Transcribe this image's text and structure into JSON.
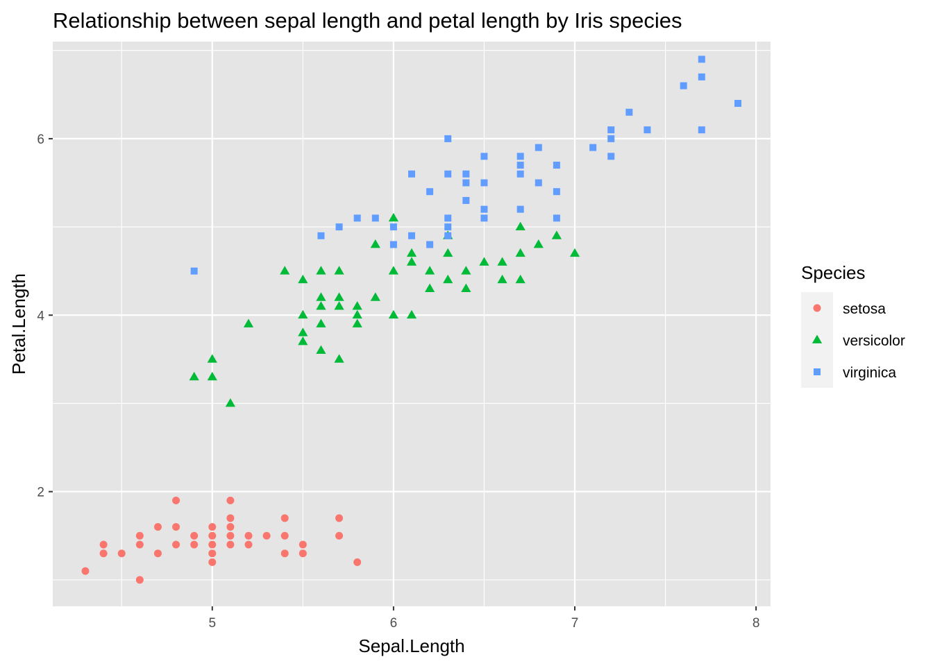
{
  "chart_data": {
    "type": "scatter",
    "title": "Relationship between sepal length and petal length by Iris species",
    "xlabel": "Sepal.Length",
    "ylabel": "Petal.Length",
    "xlim": [
      4.12,
      8.08
    ],
    "ylim": [
      0.7,
      7.1
    ],
    "x_ticks": [
      5,
      6,
      7,
      8
    ],
    "y_ticks": [
      2,
      4,
      6
    ],
    "x_tick_labels": [
      "5",
      "6",
      "7",
      "8"
    ],
    "y_tick_labels": [
      "2",
      "4",
      "6"
    ],
    "grid": true,
    "legend": {
      "title": "Species",
      "position": "right"
    },
    "colors": {
      "panel_bg": "#e5e5e5",
      "grid": "#ffffff",
      "setosa": "#f8766d",
      "versicolor": "#00ba38",
      "virginica": "#619cff"
    },
    "series": [
      {
        "name": "setosa",
        "shape": "circle",
        "points": [
          [
            4.3,
            1.1
          ],
          [
            4.4,
            1.4
          ],
          [
            4.4,
            1.3
          ],
          [
            4.5,
            1.3
          ],
          [
            4.6,
            1.5
          ],
          [
            4.6,
            1.4
          ],
          [
            4.6,
            1.0
          ],
          [
            4.7,
            1.6
          ],
          [
            4.7,
            1.3
          ],
          [
            4.8,
            1.9
          ],
          [
            4.8,
            1.6
          ],
          [
            4.8,
            1.4
          ],
          [
            4.9,
            1.5
          ],
          [
            4.9,
            1.4
          ],
          [
            5.0,
            1.6
          ],
          [
            5.0,
            1.5
          ],
          [
            5.0,
            1.4
          ],
          [
            5.0,
            1.3
          ],
          [
            5.0,
            1.2
          ],
          [
            5.1,
            1.9
          ],
          [
            5.1,
            1.7
          ],
          [
            5.1,
            1.6
          ],
          [
            5.1,
            1.5
          ],
          [
            5.1,
            1.4
          ],
          [
            5.2,
            1.5
          ],
          [
            5.2,
            1.4
          ],
          [
            5.3,
            1.5
          ],
          [
            5.4,
            1.7
          ],
          [
            5.4,
            1.5
          ],
          [
            5.4,
            1.3
          ],
          [
            5.5,
            1.4
          ],
          [
            5.5,
            1.3
          ],
          [
            5.7,
            1.7
          ],
          [
            5.7,
            1.5
          ],
          [
            5.8,
            1.2
          ]
        ]
      },
      {
        "name": "versicolor",
        "shape": "triangle",
        "points": [
          [
            4.9,
            3.3
          ],
          [
            5.0,
            3.5
          ],
          [
            5.0,
            3.3
          ],
          [
            5.1,
            3.0
          ],
          [
            5.2,
            3.9
          ],
          [
            5.4,
            4.5
          ],
          [
            5.5,
            4.4
          ],
          [
            5.5,
            4.0
          ],
          [
            5.5,
            3.8
          ],
          [
            5.5,
            3.7
          ],
          [
            5.6,
            4.5
          ],
          [
            5.6,
            4.2
          ],
          [
            5.6,
            4.1
          ],
          [
            5.6,
            3.9
          ],
          [
            5.6,
            3.6
          ],
          [
            5.7,
            4.5
          ],
          [
            5.7,
            4.2
          ],
          [
            5.7,
            4.1
          ],
          [
            5.7,
            3.5
          ],
          [
            5.8,
            4.1
          ],
          [
            5.8,
            4.0
          ],
          [
            5.8,
            3.9
          ],
          [
            5.9,
            4.8
          ],
          [
            5.9,
            4.2
          ],
          [
            6.0,
            5.1
          ],
          [
            6.0,
            4.5
          ],
          [
            6.0,
            4.0
          ],
          [
            6.1,
            4.7
          ],
          [
            6.1,
            4.6
          ],
          [
            6.1,
            4.0
          ],
          [
            6.2,
            4.5
          ],
          [
            6.2,
            4.3
          ],
          [
            6.3,
            4.9
          ],
          [
            6.3,
            4.7
          ],
          [
            6.3,
            4.4
          ],
          [
            6.4,
            4.5
          ],
          [
            6.4,
            4.3
          ],
          [
            6.5,
            4.6
          ],
          [
            6.6,
            4.6
          ],
          [
            6.6,
            4.4
          ],
          [
            6.7,
            5.0
          ],
          [
            6.7,
            4.7
          ],
          [
            6.7,
            4.4
          ],
          [
            6.8,
            4.8
          ],
          [
            6.9,
            4.9
          ],
          [
            7.0,
            4.7
          ]
        ]
      },
      {
        "name": "virginica",
        "shape": "square",
        "points": [
          [
            4.9,
            4.5
          ],
          [
            5.6,
            4.9
          ],
          [
            5.7,
            5.0
          ],
          [
            5.8,
            5.1
          ],
          [
            5.9,
            5.1
          ],
          [
            6.0,
            5.0
          ],
          [
            6.0,
            4.8
          ],
          [
            6.1,
            5.6
          ],
          [
            6.1,
            4.9
          ],
          [
            6.2,
            5.4
          ],
          [
            6.2,
            4.8
          ],
          [
            6.3,
            6.0
          ],
          [
            6.3,
            5.6
          ],
          [
            6.3,
            5.1
          ],
          [
            6.3,
            5.0
          ],
          [
            6.3,
            4.9
          ],
          [
            6.4,
            5.6
          ],
          [
            6.4,
            5.5
          ],
          [
            6.4,
            5.3
          ],
          [
            6.5,
            5.8
          ],
          [
            6.5,
            5.5
          ],
          [
            6.5,
            5.2
          ],
          [
            6.5,
            5.1
          ],
          [
            6.7,
            5.8
          ],
          [
            6.7,
            5.7
          ],
          [
            6.7,
            5.6
          ],
          [
            6.7,
            5.2
          ],
          [
            6.8,
            5.9
          ],
          [
            6.8,
            5.5
          ],
          [
            6.9,
            5.7
          ],
          [
            6.9,
            5.4
          ],
          [
            6.9,
            5.1
          ],
          [
            7.1,
            5.9
          ],
          [
            7.2,
            6.1
          ],
          [
            7.2,
            6.0
          ],
          [
            7.2,
            5.8
          ],
          [
            7.3,
            6.3
          ],
          [
            7.4,
            6.1
          ],
          [
            7.6,
            6.6
          ],
          [
            7.7,
            6.9
          ],
          [
            7.7,
            6.7
          ],
          [
            7.7,
            6.1
          ],
          [
            7.9,
            6.4
          ]
        ]
      }
    ]
  }
}
